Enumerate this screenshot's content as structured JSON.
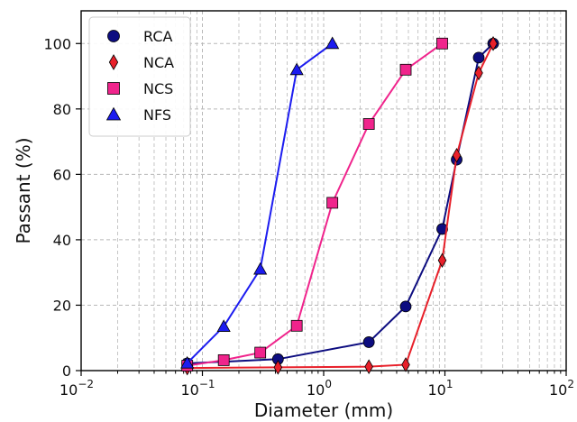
{
  "chart_data": {
    "type": "line",
    "xlabel": "Diameter (mm)",
    "ylabel": "Passant (%)",
    "xscale": "log",
    "xlim": [
      0.01,
      100
    ],
    "ylim": [
      0,
      110
    ],
    "grid": true,
    "legend_position": "top-left",
    "x_ticks": [
      {
        "value": 0.01,
        "base": "10",
        "exp": "−2"
      },
      {
        "value": 0.1,
        "base": "10",
        "exp": "−1"
      },
      {
        "value": 1,
        "base": "10",
        "exp": "0"
      },
      {
        "value": 10,
        "base": "10",
        "exp": "1"
      },
      {
        "value": 100,
        "base": "10",
        "exp": "2"
      }
    ],
    "y_ticks": [
      0,
      20,
      40,
      60,
      80,
      100
    ],
    "series": [
      {
        "name": "RCA",
        "color": "#0d0d80",
        "marker": "circle",
        "points": [
          [
            0.075,
            2.2
          ],
          [
            0.42,
            3.5
          ],
          [
            2.36,
            8.7
          ],
          [
            4.75,
            19.6
          ],
          [
            9.5,
            43.3
          ],
          [
            12.5,
            64.5
          ],
          [
            19,
            95.7
          ],
          [
            25,
            100
          ]
        ]
      },
      {
        "name": "NCA",
        "color": "#e8202a",
        "marker": "diamond",
        "points": [
          [
            0.075,
            0.8
          ],
          [
            0.42,
            1.0
          ],
          [
            2.36,
            1.2
          ],
          [
            4.75,
            1.8
          ],
          [
            9.5,
            33.7
          ],
          [
            12.5,
            65.8
          ],
          [
            19,
            91.0
          ],
          [
            25,
            100
          ]
        ]
      },
      {
        "name": "NCS",
        "color": "#f0248c",
        "marker": "square",
        "points": [
          [
            0.075,
            1.5
          ],
          [
            0.15,
            3.2
          ],
          [
            0.3,
            5.5
          ],
          [
            0.6,
            13.7
          ],
          [
            1.18,
            51.3
          ],
          [
            2.36,
            75.4
          ],
          [
            4.75,
            92.0
          ],
          [
            9.5,
            100
          ]
        ]
      },
      {
        "name": "NFS",
        "color": "#1c1cf0",
        "marker": "triangle",
        "points": [
          [
            0.075,
            2.3
          ],
          [
            0.15,
            13.5
          ],
          [
            0.3,
            31.0
          ],
          [
            0.6,
            92.0
          ],
          [
            1.18,
            100
          ]
        ]
      }
    ]
  }
}
